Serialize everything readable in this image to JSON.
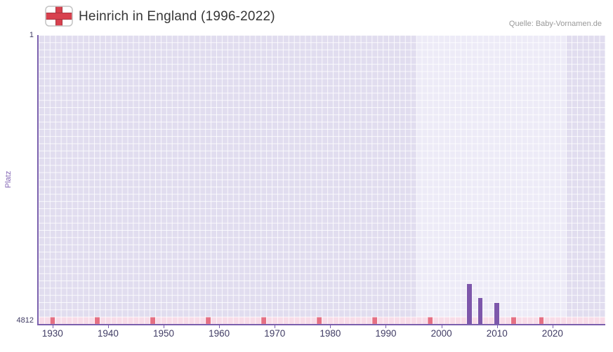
{
  "header": {
    "title": "Heinrich in England (1996-2022)",
    "source": "Quelle: Baby-Vornamen.de"
  },
  "chart_data": {
    "type": "bar",
    "title": "Heinrich in England (1996-2022)",
    "xlabel": "",
    "ylabel": "Platz",
    "y_tick_top": "1",
    "y_tick_bottom": "4812",
    "ylim": [
      1,
      4812
    ],
    "y_inverted": true,
    "x_domain": [
      1927.5,
      2029.5
    ],
    "x_ticks": [
      1930,
      1940,
      1950,
      1960,
      1970,
      1980,
      1990,
      2000,
      2010,
      2020
    ],
    "grid": true,
    "legend": false,
    "data_period": {
      "from": 1996,
      "to": 2022
    },
    "points": [
      {
        "year": 2005,
        "rank": 4150
      },
      {
        "year": 2007,
        "rank": 4380
      },
      {
        "year": 2010,
        "rank": 4460
      }
    ],
    "unranked_marker_years": [
      1930,
      1938,
      1948,
      1958,
      1968,
      1978,
      1988,
      1998,
      2013,
      2018
    ],
    "colors": {
      "bar": "#7d57ab",
      "plot_bg": "#e1ddef",
      "highlight_bg": "#edebf7",
      "grid": "rgba(255,255,255,0.8)",
      "axis": "#7a5fad",
      "strip_bg": "#f8dce8",
      "marker": "#e56f83",
      "tick_label": "#403c64",
      "ylabel_color": "#8366b5",
      "flag_red": "#d8414e"
    }
  }
}
